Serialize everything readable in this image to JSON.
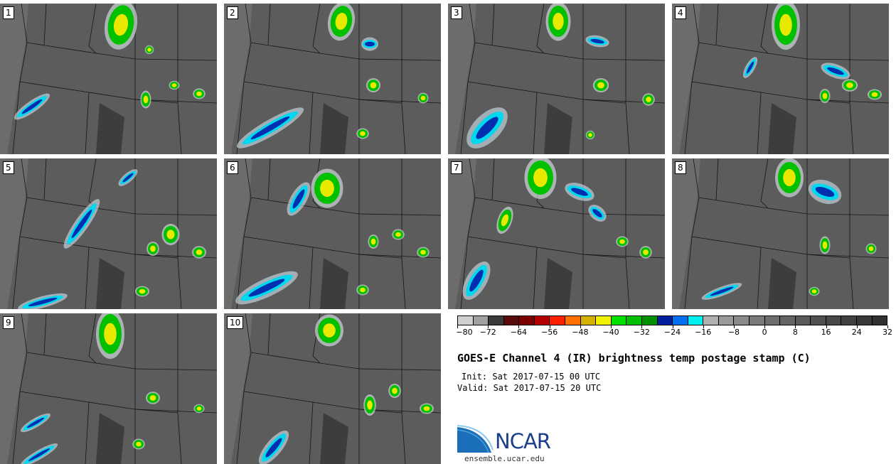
{
  "panels": [
    {
      "label": "1"
    },
    {
      "label": "2"
    },
    {
      "label": "3"
    },
    {
      "label": "4"
    },
    {
      "label": "5"
    },
    {
      "label": "6"
    },
    {
      "label": "7"
    },
    {
      "label": "8"
    },
    {
      "label": "9"
    },
    {
      "label": "10"
    }
  ],
  "colorbar": {
    "colors": [
      "#d0d0d0",
      "#a0a0a0",
      "#3a3a3a",
      "#5a0a0a",
      "#7a0000",
      "#b40000",
      "#ff2000",
      "#ff7000",
      "#d4b000",
      "#f0f000",
      "#00e000",
      "#00c000",
      "#009000",
      "#0020a0",
      "#0070f0",
      "#00f0f0",
      "#b0b0b0",
      "#9a9a9a",
      "#8a8a8a",
      "#7a7a7a",
      "#6e6e6e",
      "#646464",
      "#5a5a5a",
      "#505050",
      "#484848",
      "#404040",
      "#383838",
      "#303030"
    ],
    "tick_labels": [
      "−80",
      "−72",
      "−64",
      "−56",
      "−48",
      "−40",
      "−32",
      "−24",
      "−16",
      "−8",
      "0",
      "8",
      "16",
      "24",
      "32"
    ]
  },
  "title": "GOES-E Channel 4 (IR) brightness temp postage stamp (C)",
  "init_line": "Init: Sat 2017-07-15 00 UTC",
  "valid_line": "Valid: Sat 2017-07-15 20 UTC",
  "logo_text": "NCAR",
  "site": "ensemble.ucar.edu",
  "colors": {
    "logo_blue": "#1b3f8a",
    "logo_light": "#3b8fd0"
  }
}
